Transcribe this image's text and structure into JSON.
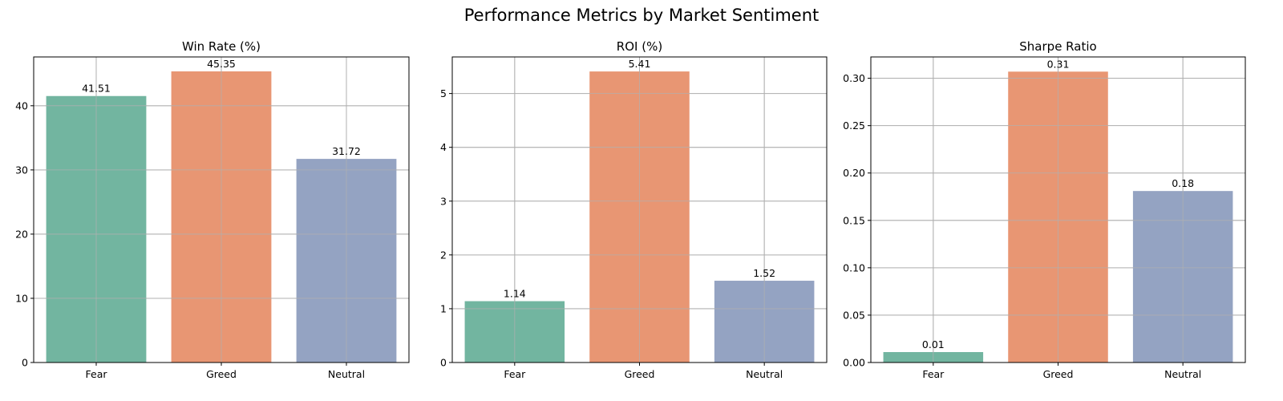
{
  "figure": {
    "title": "Performance Metrics by Market Sentiment"
  },
  "colors": {
    "Fear": "#72b5a0",
    "Greed": "#e89673",
    "Neutral": "#94a3c2",
    "grid": "#b0b0b0",
    "axis": "#000000"
  },
  "chart_data": [
    {
      "type": "bar",
      "title": "Win Rate (%)",
      "categories": [
        "Fear",
        "Greed",
        "Neutral"
      ],
      "values": [
        41.51,
        45.35,
        31.72
      ],
      "value_labels": [
        "41.51",
        "45.35",
        "31.72"
      ],
      "ylim": [
        0,
        47.6
      ],
      "yticks": [
        0,
        10,
        20,
        30,
        40
      ],
      "ytick_labels": [
        "0",
        "10",
        "20",
        "30",
        "40"
      ],
      "xlabel": "",
      "ylabel": "",
      "grid": true
    },
    {
      "type": "bar",
      "title": "ROI (%)",
      "categories": [
        "Fear",
        "Greed",
        "Neutral"
      ],
      "values": [
        1.14,
        5.41,
        1.52
      ],
      "value_labels": [
        "1.14",
        "5.41",
        "1.52"
      ],
      "ylim": [
        0,
        5.68
      ],
      "yticks": [
        0,
        1,
        2,
        3,
        4,
        5
      ],
      "ytick_labels": [
        "0",
        "1",
        "2",
        "3",
        "4",
        "5"
      ],
      "xlabel": "",
      "ylabel": "",
      "grid": true
    },
    {
      "type": "bar",
      "title": "Sharpe Ratio",
      "categories": [
        "Fear",
        "Greed",
        "Neutral"
      ],
      "values": [
        0.011,
        0.307,
        0.181
      ],
      "value_labels": [
        "0.01",
        "0.31",
        "0.18"
      ],
      "ylim": [
        0,
        0.3225
      ],
      "yticks": [
        0,
        0.05,
        0.1,
        0.15,
        0.2,
        0.25,
        0.3
      ],
      "ytick_labels": [
        "0.00",
        "0.05",
        "0.10",
        "0.15",
        "0.20",
        "0.25",
        "0.30"
      ],
      "xlabel": "",
      "ylabel": "",
      "grid": true
    }
  ]
}
